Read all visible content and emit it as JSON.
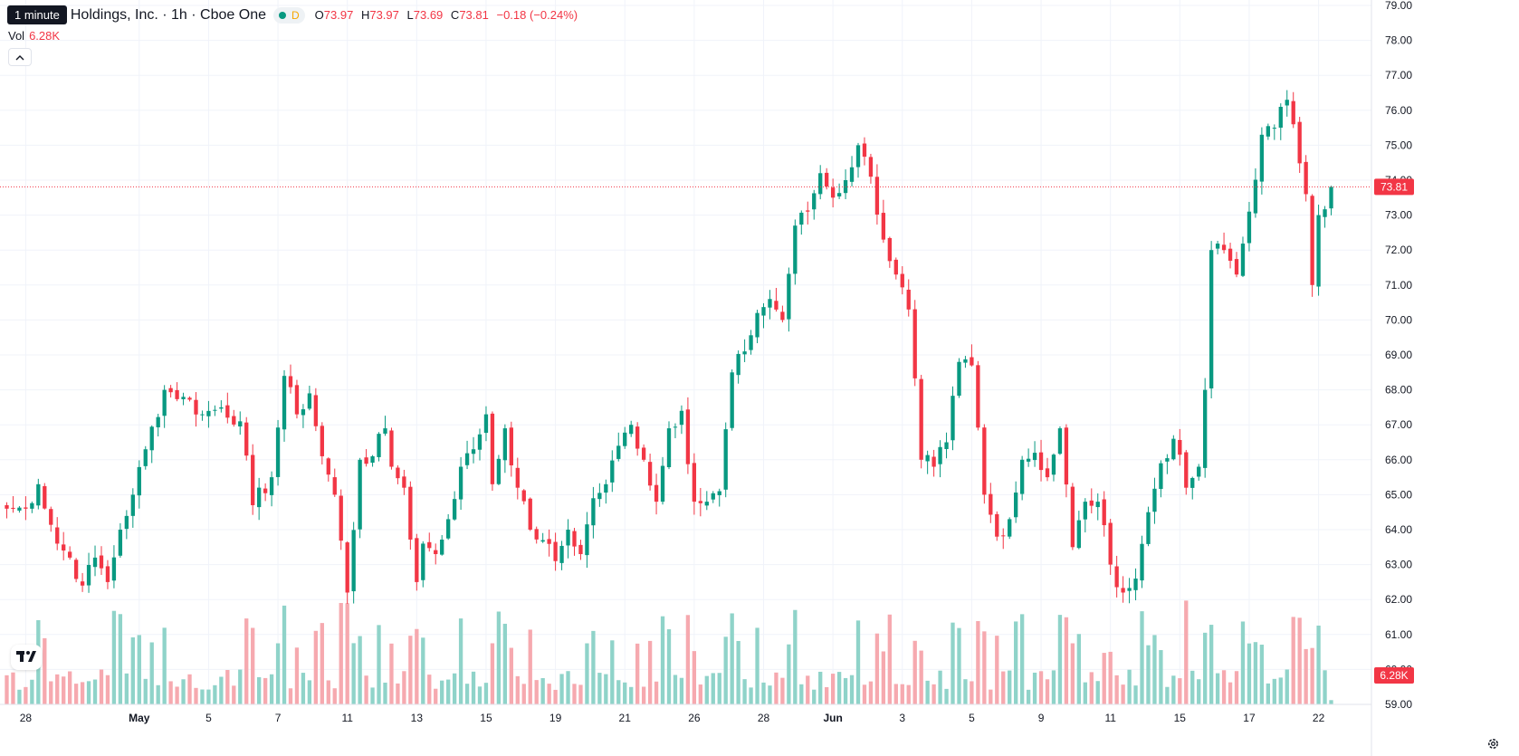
{
  "header": {
    "tooltip": "1 minute",
    "symbol_title": "Holdings, Inc. · 1h · Cboe One",
    "pill_label": "D",
    "ohlc": {
      "o_label": "O",
      "o": "73.97",
      "h_label": "H",
      "h": "73.97",
      "l_label": "L",
      "l": "73.69",
      "c_label": "C",
      "c": "73.81",
      "change": "−0.18 (−0.24%)"
    },
    "volume_label": "Vol",
    "volume_value": "6.28K",
    "collapse_icon": "chevron-up-icon",
    "logo_text": "TV",
    "settings_icon": "gear-icon"
  },
  "colors": {
    "up": "#089981",
    "down": "#f23645",
    "vol_up": "#8fd3c9",
    "vol_down": "#f6a9af",
    "grid": "#f0f3fa",
    "axis_text": "#131722"
  },
  "chart_data": {
    "type": "candlestick",
    "price_axis": {
      "min": 59,
      "max": 79,
      "ticks": [
        "59.00",
        "60.00",
        "61.00",
        "62.00",
        "63.00",
        "64.00",
        "65.00",
        "66.00",
        "67.00",
        "68.00",
        "69.00",
        "70.00",
        "71.00",
        "72.00",
        "73.00",
        "74.00",
        "75.00",
        "76.00",
        "77.00",
        "78.00",
        "79.00"
      ]
    },
    "time_axis_labels": [
      {
        "label": "28",
        "i": 3
      },
      {
        "label": "May",
        "i": 21
      },
      {
        "label": "5",
        "i": 32
      },
      {
        "label": "7",
        "i": 43
      },
      {
        "label": "11",
        "i": 54
      },
      {
        "label": "13",
        "i": 65
      },
      {
        "label": "15",
        "i": 76
      },
      {
        "label": "19",
        "i": 87
      },
      {
        "label": "21",
        "i": 98
      },
      {
        "label": "26",
        "i": 109
      },
      {
        "label": "28",
        "i": 120
      },
      {
        "label": "Jun",
        "i": 131
      },
      {
        "label": "3",
        "i": 142
      },
      {
        "label": "5",
        "i": 153
      },
      {
        "label": "9",
        "i": 164
      },
      {
        "label": "11",
        "i": 175
      },
      {
        "label": "15",
        "i": 186
      },
      {
        "label": "17",
        "i": 197
      },
      {
        "label": "22",
        "i": 208
      }
    ],
    "last_price": "73.81",
    "last_volume": "6.28K",
    "volume_max": 14,
    "anchors": [
      [
        0,
        64.6
      ],
      [
        3,
        64.6
      ],
      [
        5,
        65.3
      ],
      [
        8,
        63.6
      ],
      [
        10,
        63.2
      ],
      [
        12,
        62.4
      ],
      [
        14,
        63.2
      ],
      [
        16,
        62.5
      ],
      [
        18,
        64.0
      ],
      [
        20,
        65.0
      ],
      [
        22,
        66.3
      ],
      [
        25,
        68.0
      ],
      [
        28,
        67.8
      ],
      [
        31,
        67.3
      ],
      [
        34,
        67.5
      ],
      [
        37,
        67.1
      ],
      [
        39,
        64.7
      ],
      [
        42,
        65.5
      ],
      [
        44,
        68.4
      ],
      [
        46,
        67.3
      ],
      [
        48,
        67.9
      ],
      [
        50,
        66.1
      ],
      [
        52,
        65.0
      ],
      [
        54,
        62.2
      ],
      [
        56,
        66.0
      ],
      [
        58,
        66.1
      ],
      [
        60,
        66.9
      ],
      [
        61,
        65.8
      ],
      [
        63,
        65.2
      ],
      [
        65,
        62.5
      ],
      [
        66,
        63.6
      ],
      [
        68,
        63.3
      ],
      [
        70,
        64.3
      ],
      [
        72,
        65.8
      ],
      [
        74,
        66.3
      ],
      [
        76,
        67.3
      ],
      [
        77,
        65.3
      ],
      [
        79,
        66.9
      ],
      [
        81,
        65.2
      ],
      [
        83,
        64.0
      ],
      [
        85,
        63.7
      ],
      [
        87,
        63.1
      ],
      [
        89,
        64.0
      ],
      [
        91,
        63.3
      ],
      [
        93,
        64.9
      ],
      [
        95,
        65.3
      ],
      [
        97,
        66.4
      ],
      [
        99,
        67.0
      ],
      [
        101,
        66.0
      ],
      [
        103,
        64.8
      ],
      [
        105,
        66.9
      ],
      [
        107,
        67.4
      ],
      [
        109,
        64.8
      ],
      [
        111,
        64.8
      ],
      [
        113,
        65.1
      ],
      [
        115,
        68.5
      ],
      [
        117,
        69.1
      ],
      [
        119,
        70.2
      ],
      [
        121,
        70.6
      ],
      [
        123,
        70.0
      ],
      [
        125,
        72.7
      ],
      [
        127,
        73.1
      ],
      [
        129,
        74.2
      ],
      [
        131,
        73.5
      ],
      [
        133,
        74.0
      ],
      [
        135,
        75.0
      ],
      [
        137,
        74.1
      ],
      [
        139,
        72.3
      ],
      [
        141,
        71.3
      ],
      [
        143,
        70.3
      ],
      [
        145,
        66.0
      ],
      [
        147,
        65.8
      ],
      [
        149,
        66.5
      ],
      [
        151,
        68.8
      ],
      [
        153,
        68.7
      ],
      [
        155,
        65.0
      ],
      [
        157,
        63.8
      ],
      [
        159,
        64.3
      ],
      [
        161,
        66.0
      ],
      [
        163,
        66.2
      ],
      [
        165,
        65.5
      ],
      [
        167,
        66.9
      ],
      [
        169,
        63.5
      ],
      [
        171,
        64.8
      ],
      [
        173,
        64.8
      ],
      [
        175,
        63.0
      ],
      [
        177,
        62.2
      ],
      [
        179,
        62.6
      ],
      [
        181,
        64.5
      ],
      [
        183,
        65.9
      ],
      [
        185,
        66.6
      ],
      [
        187,
        65.2
      ],
      [
        189,
        65.8
      ],
      [
        190,
        68.0
      ],
      [
        191,
        72.0
      ],
      [
        193,
        72.0
      ],
      [
        195,
        71.3
      ],
      [
        197,
        73.1
      ],
      [
        199,
        75.3
      ],
      [
        201,
        75.5
      ],
      [
        203,
        76.3
      ],
      [
        204,
        75.6
      ],
      [
        206,
        73.6
      ],
      [
        207,
        71.0
      ],
      [
        208,
        73.0
      ],
      [
        210,
        73.81
      ]
    ],
    "bar_count": 211
  }
}
